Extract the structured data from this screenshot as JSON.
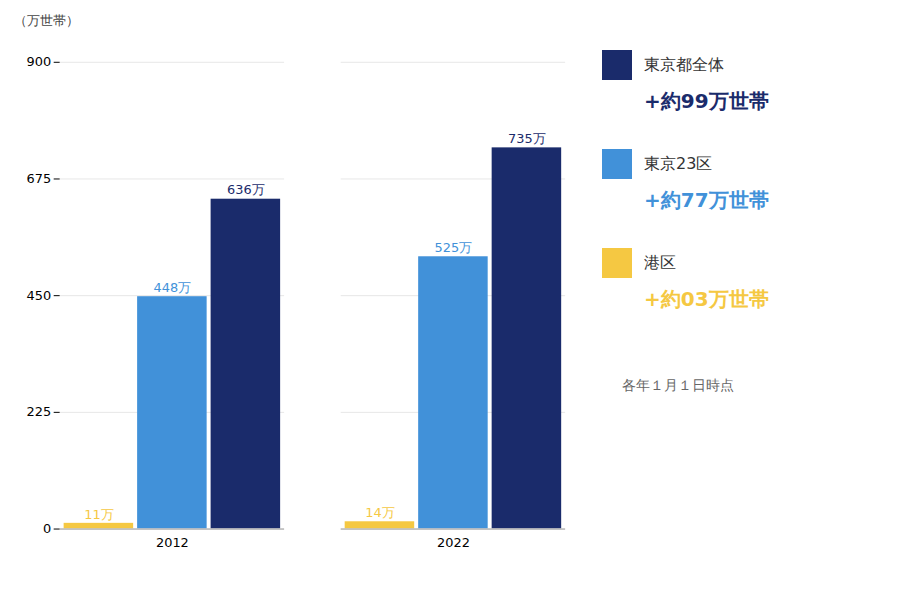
{
  "chart_data": {
    "type": "bar",
    "categories": [
      "2012",
      "2022"
    ],
    "series": [
      {
        "name": "港区",
        "color": "#f5c842",
        "values": [
          11,
          14
        ],
        "value_labels": [
          "11万",
          "14万"
        ],
        "annotation": "+約03万世帯"
      },
      {
        "name": "東京23区",
        "color": "#4191d9",
        "values": [
          448,
          525
        ],
        "value_labels": [
          "448万",
          "525万"
        ],
        "annotation": "+約77万世帯"
      },
      {
        "name": "東京都全体",
        "color": "#1a2b6b",
        "values": [
          636,
          735
        ],
        "value_labels": [
          "636万",
          "735万"
        ],
        "annotation": "+約99万世帯"
      }
    ],
    "ylabel": "（万世帯）",
    "ylim": [
      0,
      900
    ],
    "yticks": [
      0,
      225,
      450,
      675,
      900
    ],
    "grid": true,
    "data_labels": true,
    "legend": "right",
    "caption": "各年１月１日時点"
  }
}
